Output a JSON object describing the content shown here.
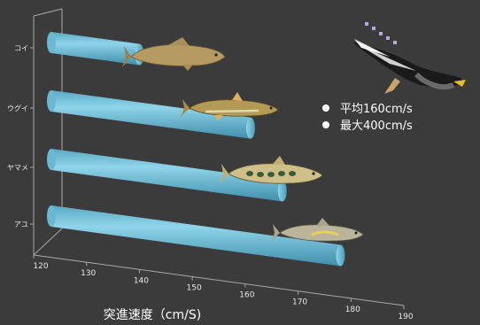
{
  "chart_data": {
    "type": "bar",
    "orientation": "horizontal",
    "style": "3d-cylinder",
    "categories": [
      "コイ",
      "ウグイ",
      "ヤマメ",
      "アユ"
    ],
    "values": [
      137,
      158,
      164,
      175
    ],
    "xlabel": "突進速度（cm/S)",
    "xlim": [
      120,
      190
    ],
    "xticks": [
      120,
      130,
      140,
      150,
      160,
      170,
      180,
      190
    ],
    "colors": {
      "bar": "#74c4de",
      "bar_dark": "#3d8aa6",
      "background": "#3b3b3b",
      "axis": "#aaaaaa"
    }
  },
  "annotation": {
    "items": [
      "平均160cm/s",
      "最大400cm/s"
    ],
    "icon": "cormorant-diving-icon"
  },
  "fish_icons": [
    "carp-icon",
    "dace-icon",
    "masu-salmon-icon",
    "sweetfish-icon"
  ]
}
